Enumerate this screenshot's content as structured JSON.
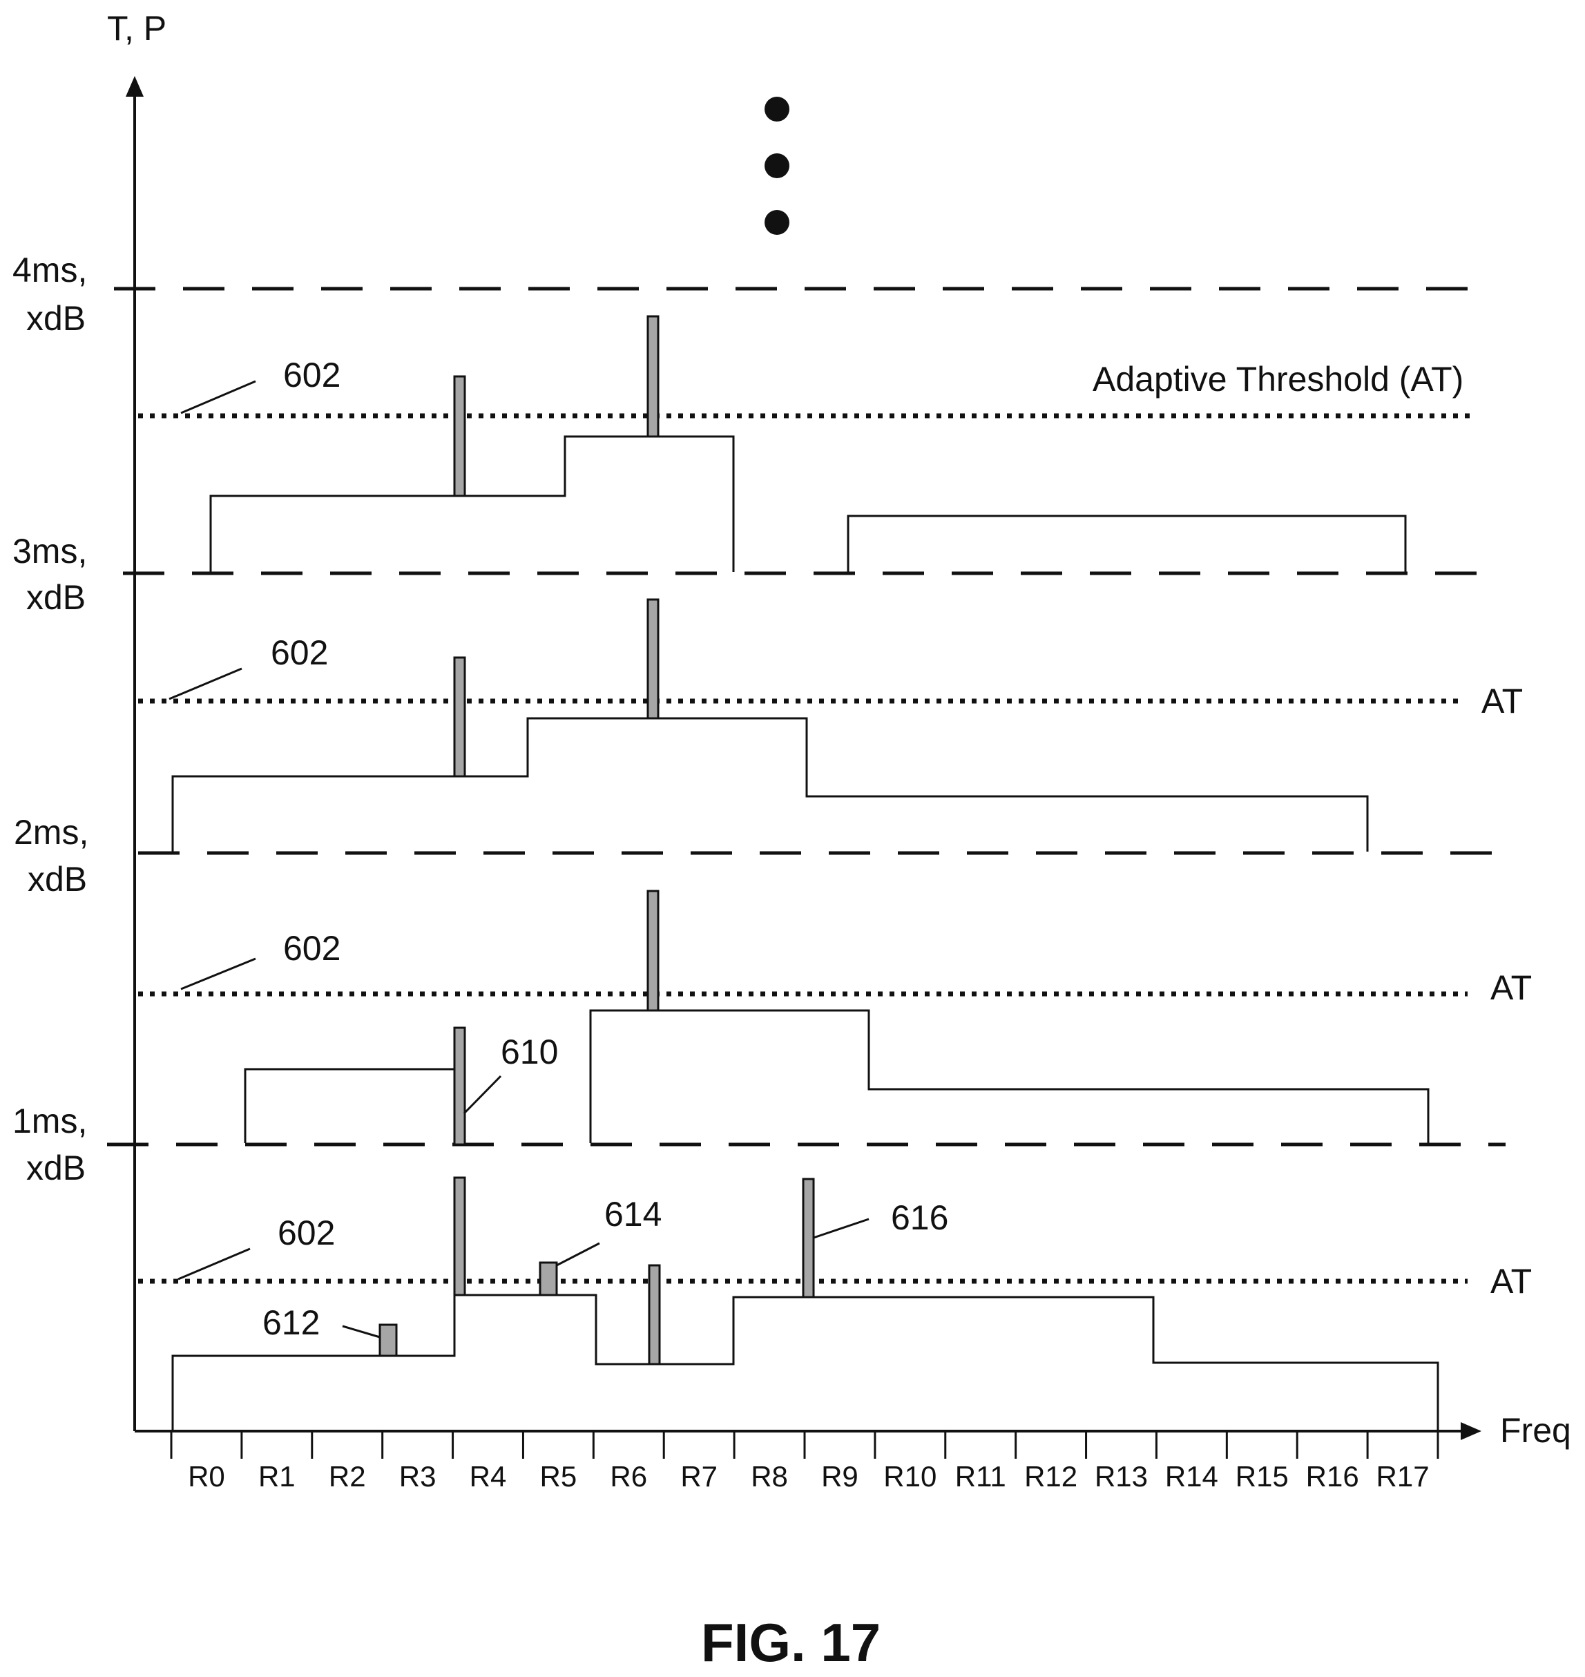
{
  "axes": {
    "y_label": "T, P",
    "x_label": "Freq"
  },
  "time_levels": [
    {
      "time": "1ms,",
      "power": "xdB"
    },
    {
      "time": "2ms,",
      "power": "xdB"
    },
    {
      "time": "3ms,",
      "power": "xdB"
    },
    {
      "time": "4ms,",
      "power": "xdB"
    }
  ],
  "bins": [
    "R0",
    "R1",
    "R2",
    "R3",
    "R4",
    "R5",
    "R6",
    "R7",
    "R8",
    "R9",
    "R10",
    "R11",
    "R12",
    "R13",
    "R14",
    "R15",
    "R16",
    "R17"
  ],
  "threshold_labels": {
    "full": "Adaptive Threshold (AT)",
    "short": "AT"
  },
  "reference_numerals": {
    "threshold": "602",
    "n610": "610",
    "n612": "612",
    "n614": "614",
    "n616": "616"
  },
  "caption": "FIG. 17"
}
